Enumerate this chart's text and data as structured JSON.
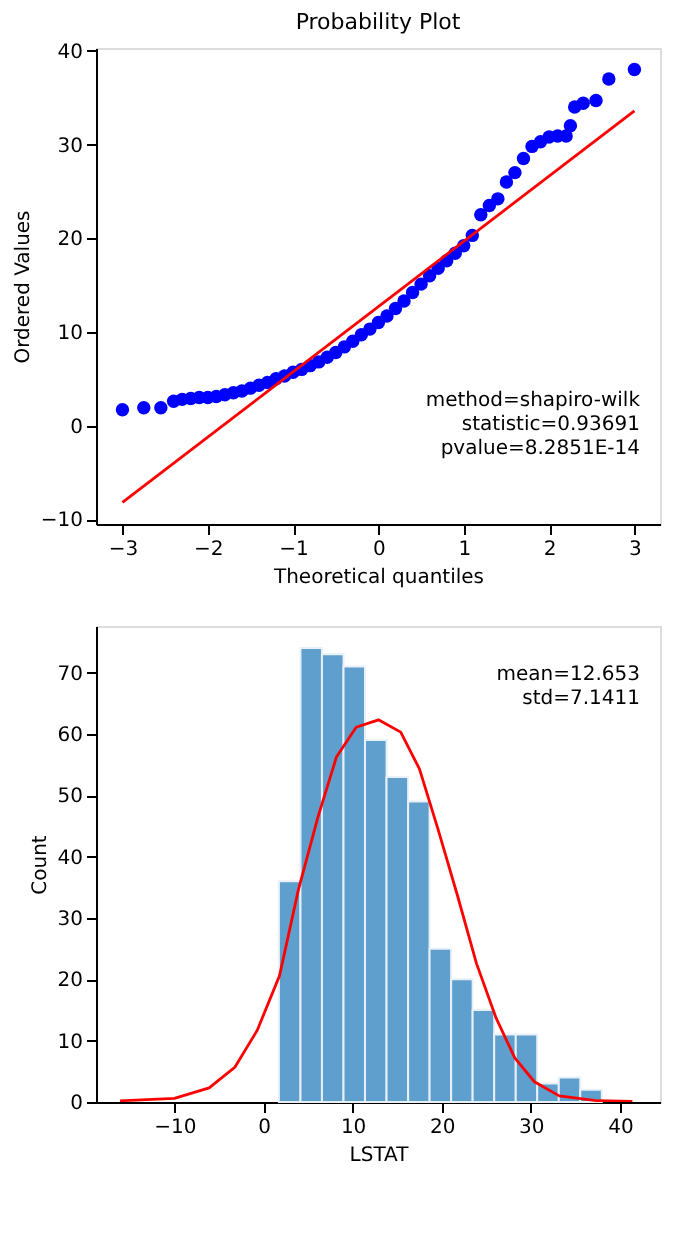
{
  "chart_data": [
    {
      "type": "scatter",
      "title": "Probability Plot",
      "xlabel": "Theoretical quantiles",
      "ylabel": "Ordered Values",
      "xlim": [
        -3.31,
        3.3
      ],
      "ylim": [
        -10.5,
        40.3
      ],
      "xticks": [
        -3,
        -2,
        -1,
        0,
        1,
        2,
        3
      ],
      "yticks": [
        -10,
        0,
        10,
        20,
        30,
        40
      ],
      "grid": false,
      "series": [
        {
          "type": "scatter",
          "marker": "circle",
          "color": "#0000ff",
          "x": [
            -3,
            -2.75,
            -2.55,
            -2.4,
            -2.3,
            -2.2,
            -2.1,
            -2.0,
            -1.9,
            -1.8,
            -1.7,
            -1.6,
            -1.5,
            -1.4,
            -1.3,
            -1.2,
            -1.1,
            -1.0,
            -0.9,
            -0.8,
            -0.7,
            -0.6,
            -0.5,
            -0.4,
            -0.3,
            -0.2,
            -0.1,
            0,
            0.1,
            0.2,
            0.3,
            0.4,
            0.5,
            0.6,
            0.7,
            0.8,
            0.9,
            1.0,
            1.1,
            1.2,
            1.3,
            1.4,
            1.5,
            1.6,
            1.7,
            1.8,
            1.9,
            2.0,
            2.1,
            2.2,
            2.25,
            2.3,
            2.4,
            2.55,
            2.7,
            3.0
          ],
          "values": [
            1.7,
            1.9,
            1.9,
            2.6,
            2.8,
            2.9,
            3.0,
            3.0,
            3.1,
            3.3,
            3.5,
            3.7,
            4.0,
            4.3,
            4.6,
            5.0,
            5.3,
            5.7,
            6.0,
            6.4,
            6.8,
            7.3,
            7.8,
            8.4,
            9.0,
            9.7,
            10.3,
            11.0,
            11.7,
            12.5,
            13.3,
            14.2,
            15.1,
            16.0,
            16.8,
            17.6,
            18.4,
            19.2,
            20.3,
            22.5,
            23.5,
            24.2,
            26.0,
            27.0,
            28.5,
            29.8,
            30.3,
            30.8,
            30.9,
            30.9,
            32.0,
            34.0,
            34.4,
            34.7,
            37.0,
            38.0
          ]
        },
        {
          "type": "line",
          "color": "#ff0000",
          "x": [
            -3,
            3
          ],
          "values": [
            -8.2,
            33.6
          ]
        }
      ],
      "annotations": [
        "method=shapiro-wilk",
        "statistic=0.93691",
        "pvalue=8.2851E-14"
      ]
    },
    {
      "type": "histogram",
      "xlabel": "LSTAT",
      "ylabel": "Count",
      "xlim": [
        -18.8,
        44.5
      ],
      "ylim": [
        0,
        77.6
      ],
      "xticks": [
        -10,
        0,
        10,
        20,
        30,
        40
      ],
      "yticks": [
        0,
        10,
        20,
        30,
        40,
        50,
        60,
        70
      ],
      "grid": false,
      "color": "#5f9fcd",
      "bins": [
        1.73,
        4.15,
        6.56,
        8.98,
        11.39,
        13.81,
        16.23,
        18.64,
        21.06,
        23.47,
        25.89,
        28.31,
        30.72,
        33.14,
        35.55,
        37.97
      ],
      "values": [
        36,
        74,
        73,
        71,
        59,
        53,
        49,
        25,
        20,
        15,
        11,
        11,
        3,
        4,
        2
      ],
      "series": [
        {
          "type": "line",
          "color": "#ff0000",
          "x": [
            -16.1,
            -10,
            -6.1,
            -3.2,
            -0.7,
            1.8,
            3.9,
            6.1,
            8.2,
            10.4,
            12.9,
            15.4,
            17.5,
            19.6,
            21.8,
            23.9,
            26.1,
            28.2,
            30.4,
            33.2,
            37.5,
            41.4
          ],
          "values": [
            0.2,
            0.6,
            2.3,
            5.7,
            11.7,
            20.6,
            34.5,
            46.4,
            56.3,
            61.1,
            62.3,
            60.3,
            54.3,
            44.4,
            33.5,
            22.6,
            13.7,
            7.2,
            3.3,
            1.0,
            0.2,
            0.1
          ]
        }
      ],
      "annotations": [
        "mean=12.653",
        "std=7.1411"
      ]
    }
  ]
}
